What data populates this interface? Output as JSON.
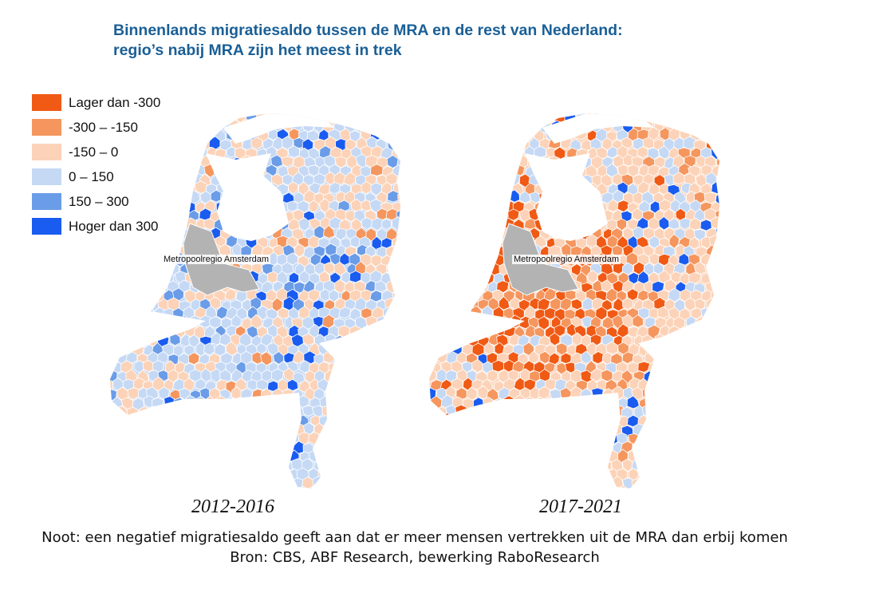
{
  "title": {
    "line1": "Binnenlands migratiesaldo tussen de MRA en de rest van Nederland:",
    "line2": "regio’s nabij MRA zijn het meest in trek"
  },
  "legend": [
    {
      "label": "Lager dan -300",
      "color": "#f05a14"
    },
    {
      "label": "-300 – -150",
      "color": "#f5965e"
    },
    {
      "label": "-150 – 0",
      "color": "#fcd3b8"
    },
    {
      "label": "0 – 150",
      "color": "#c5d9f5"
    },
    {
      "label": "150 – 300",
      "color": "#6a9ce8"
    },
    {
      "label": "Hoger dan 300",
      "color": "#1a5cf0"
    }
  ],
  "mra_color": "#b3b3b3",
  "maps": [
    {
      "period": "2012-2016",
      "region_label": "Metropoolregio Amsterdam"
    },
    {
      "period": "2017-2021",
      "region_label": "Metropoolregio Amsterdam"
    }
  ],
  "note": "Noot: een negatief migratiesaldo geeft aan dat er meer mensen vertrekken uit de MRA dan erbij komen",
  "source": "Bron: CBS, ABF Research, bewerking RaboResearch"
}
